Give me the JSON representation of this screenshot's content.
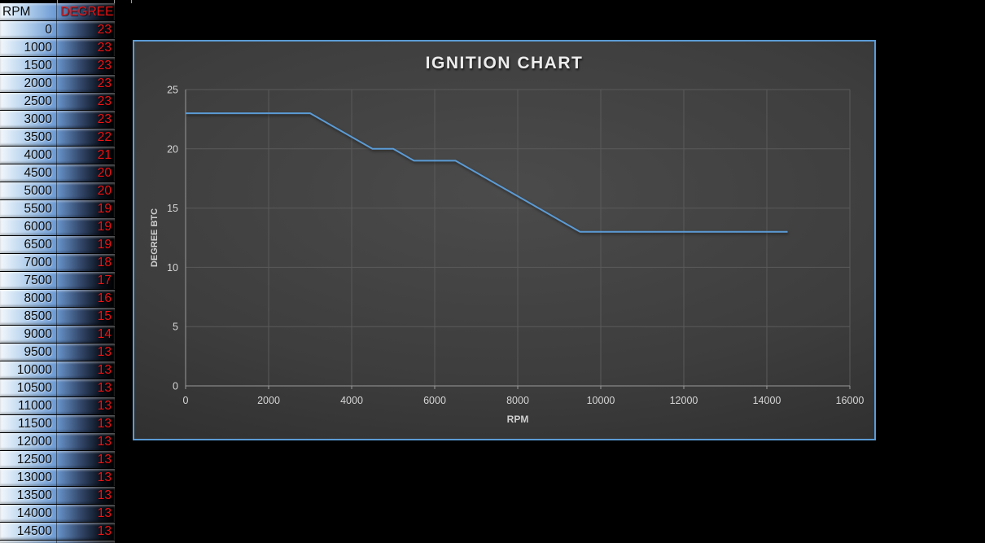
{
  "colors": {
    "line": "#5b9bd5",
    "chart_border": "#5b9bd5",
    "gridline": "#5a5a5a",
    "axis": "#9a9a9a",
    "tick_text": "#d6d6d6",
    "degree_text": "#f11212",
    "rpm_text": "#0a0a0a"
  },
  "table": {
    "headers": {
      "rpm": "RPM",
      "degree": "DEGREE"
    },
    "rows": [
      [
        0,
        23
      ],
      [
        1000,
        23
      ],
      [
        1500,
        23
      ],
      [
        2000,
        23
      ],
      [
        2500,
        23
      ],
      [
        3000,
        23
      ],
      [
        3500,
        22
      ],
      [
        4000,
        21
      ],
      [
        4500,
        20
      ],
      [
        5000,
        20
      ],
      [
        5500,
        19
      ],
      [
        6000,
        19
      ],
      [
        6500,
        19
      ],
      [
        7000,
        18
      ],
      [
        7500,
        17
      ],
      [
        8000,
        16
      ],
      [
        8500,
        15
      ],
      [
        9000,
        14
      ],
      [
        9500,
        13
      ],
      [
        10000,
        13
      ],
      [
        10500,
        13
      ],
      [
        11000,
        13
      ],
      [
        11500,
        13
      ],
      [
        12000,
        13
      ],
      [
        12500,
        13
      ],
      [
        13000,
        13
      ],
      [
        13500,
        13
      ],
      [
        14000,
        13
      ],
      [
        14500,
        13
      ]
    ]
  },
  "chart_data": {
    "type": "line",
    "title": "IGNITION CHART",
    "xlabel": "RPM",
    "ylabel": "DEGREE BTC",
    "x": [
      0,
      1000,
      1500,
      2000,
      2500,
      3000,
      3500,
      4000,
      4500,
      5000,
      5500,
      6000,
      6500,
      7000,
      7500,
      8000,
      8500,
      9000,
      9500,
      10000,
      10500,
      11000,
      11500,
      12000,
      12500,
      13000,
      13500,
      14000,
      14500
    ],
    "y": [
      23,
      23,
      23,
      23,
      23,
      23,
      22,
      21,
      20,
      20,
      19,
      19,
      19,
      18,
      17,
      16,
      15,
      14,
      13,
      13,
      13,
      13,
      13,
      13,
      13,
      13,
      13,
      13,
      13
    ],
    "xlim": [
      0,
      16000
    ],
    "ylim": [
      0,
      25
    ],
    "x_ticks": [
      0,
      2000,
      4000,
      6000,
      8000,
      10000,
      12000,
      14000,
      16000
    ],
    "y_ticks": [
      0,
      5,
      10,
      15,
      20,
      25
    ],
    "grid": true,
    "legend": false,
    "line_color": "#5b9bd5"
  }
}
